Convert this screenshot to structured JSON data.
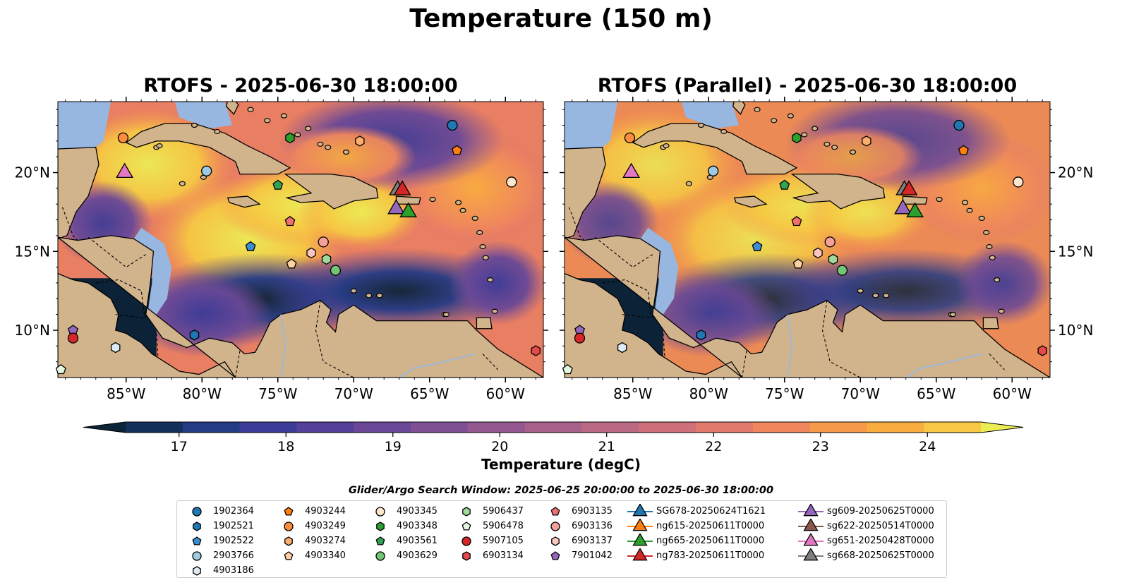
{
  "title": "Temperature (150 m)",
  "panels": [
    {
      "title": "RTOFS - 2025-06-30 18:00:00"
    },
    {
      "title": "RTOFS (Parallel) - 2025-06-30 18:00:00"
    }
  ],
  "map": {
    "lon_range": [
      -89.5,
      -57.5
    ],
    "lat_range": [
      7.0,
      24.5
    ],
    "lon_ticks": [
      "85°W",
      "80°W",
      "75°W",
      "70°W",
      "65°W",
      "60°W"
    ],
    "lat_ticks": [
      "20°N",
      "15°N",
      "10°N"
    ]
  },
  "colorbar": {
    "label": "Temperature (degC)",
    "ticks": [
      "17",
      "18",
      "19",
      "20",
      "21",
      "22",
      "23",
      "24"
    ],
    "min": 16.5,
    "max": 24.5,
    "colors": [
      "#0b2237",
      "#13305a",
      "#233a85",
      "#3c3b97",
      "#54409a",
      "#6a4897",
      "#7e5093",
      "#92588f",
      "#a6608a",
      "#ba6883",
      "#ce7079",
      "#e07a6c",
      "#ef875d",
      "#f6994b",
      "#f9ad3f",
      "#f6c843",
      "#ecec55"
    ]
  },
  "search_window": "Glider/Argo Search Window: 2025-06-25 20:00:00 to 2025-06-30 18:00:00",
  "legend": [
    [
      {
        "label": "1902364",
        "shape": "circle",
        "color": "#1f77b4"
      },
      {
        "label": "1902521",
        "shape": "hexagon",
        "color": "#1f77b4"
      },
      {
        "label": "1902522",
        "shape": "pentagon",
        "color": "#3b8ed0"
      },
      {
        "label": "2903766",
        "shape": "circle",
        "color": "#9ecae1"
      },
      {
        "label": "4903186",
        "shape": "hexagon",
        "color": "#deebf7"
      }
    ],
    [
      {
        "label": "4903244",
        "shape": "pentagon",
        "color": "#ff7f0e"
      },
      {
        "label": "4903249",
        "shape": "circle",
        "color": "#fd8d3c"
      },
      {
        "label": "4903274",
        "shape": "hexagon",
        "color": "#fdae6b"
      },
      {
        "label": "4903340",
        "shape": "pentagon",
        "color": "#fdd0a2"
      }
    ],
    [
      {
        "label": "4903345",
        "shape": "circle",
        "color": "#fee6ce"
      },
      {
        "label": "4903348",
        "shape": "hexagon",
        "color": "#2ca02c"
      },
      {
        "label": "4903561",
        "shape": "pentagon",
        "color": "#31a354"
      },
      {
        "label": "4903629",
        "shape": "circle",
        "color": "#74c476"
      }
    ],
    [
      {
        "label": "5906437",
        "shape": "hexagon",
        "color": "#a1d99b"
      },
      {
        "label": "5906478",
        "shape": "pentagon",
        "color": "#e5f5e0"
      },
      {
        "label": "5907105",
        "shape": "circle",
        "color": "#d62728"
      },
      {
        "label": "6903134",
        "shape": "hexagon",
        "color": "#e34a4a"
      }
    ],
    [
      {
        "label": "6903135",
        "shape": "pentagon",
        "color": "#f07070"
      },
      {
        "label": "6903136",
        "shape": "circle",
        "color": "#f4a09a"
      },
      {
        "label": "6903137",
        "shape": "hexagon",
        "color": "#fcc5c0"
      },
      {
        "label": "7901042",
        "shape": "pentagon",
        "color": "#9467bd"
      }
    ],
    [
      {
        "label": "SG678-20250624T1621",
        "shape": "triangle",
        "color": "#1f77b4"
      },
      {
        "label": "ng615-20250611T0000",
        "shape": "triangle",
        "color": "#ff7f0e"
      },
      {
        "label": "ng665-20250611T0000",
        "shape": "triangle",
        "color": "#2ca02c"
      },
      {
        "label": "ng783-20250611T0000",
        "shape": "triangle",
        "color": "#d62728"
      }
    ],
    [
      {
        "label": "sg609-20250625T0000",
        "shape": "triangle",
        "color": "#9467bd"
      },
      {
        "label": "sg622-20250514T0000",
        "shape": "triangle",
        "color": "#8c564b"
      },
      {
        "label": "sg651-20250428T0000",
        "shape": "triangle",
        "color": "#e377c2"
      },
      {
        "label": "sg668-20250625T0000",
        "shape": "triangle",
        "color": "#7f7f7f"
      }
    ]
  ],
  "argo_floats": [
    {
      "id": "1902364",
      "lon": -63.5,
      "lat": 23.0
    },
    {
      "id": "4903244",
      "lon": -63.2,
      "lat": 21.4
    },
    {
      "id": "4903249",
      "lon": -85.2,
      "lat": 22.2
    },
    {
      "id": "4903348",
      "lon": -74.2,
      "lat": 22.2
    },
    {
      "id": "4903274",
      "lon": -69.6,
      "lat": 22.0
    },
    {
      "id": "2903766",
      "lon": -79.7,
      "lat": 20.1
    },
    {
      "id": "4903345",
      "lon": -59.6,
      "lat": 19.4
    },
    {
      "id": "4903561",
      "lon": -75.0,
      "lat": 19.2
    },
    {
      "id": "6903135",
      "lon": -74.2,
      "lat": 16.9
    },
    {
      "id": "1902522",
      "lon": -76.8,
      "lat": 15.3
    },
    {
      "id": "6903136",
      "lon": -72.0,
      "lat": 15.6
    },
    {
      "id": "6903137",
      "lon": -72.8,
      "lat": 14.9
    },
    {
      "id": "5906437",
      "lon": -71.8,
      "lat": 14.5
    },
    {
      "id": "4903340",
      "lon": -74.1,
      "lat": 14.2
    },
    {
      "id": "4903629",
      "lon": -71.2,
      "lat": 13.8
    },
    {
      "id": "7901042",
      "lon": -88.5,
      "lat": 10.0
    },
    {
      "id": "5907105",
      "lon": -88.5,
      "lat": 9.5
    },
    {
      "id": "1902521",
      "lon": -80.5,
      "lat": 9.7
    },
    {
      "id": "4903186",
      "lon": -85.7,
      "lat": 8.9
    },
    {
      "id": "5906478",
      "lon": -89.3,
      "lat": 7.5
    },
    {
      "id": "6903134",
      "lon": -58.0,
      "lat": 8.7
    }
  ],
  "gliders": [
    {
      "id": "sg651-20250428T0000",
      "lon": -85.1,
      "lat": 20.1
    },
    {
      "id": "sg668-20250625T0000",
      "lon": -67.1,
      "lat": 19.0
    },
    {
      "id": "ng783-20250611T0000",
      "lon": -66.8,
      "lat": 19.0
    },
    {
      "id": "sg609-20250625T0000",
      "lon": -67.2,
      "lat": 17.8
    },
    {
      "id": "ng665-20250611T0000",
      "lon": -66.4,
      "lat": 17.6
    }
  ]
}
